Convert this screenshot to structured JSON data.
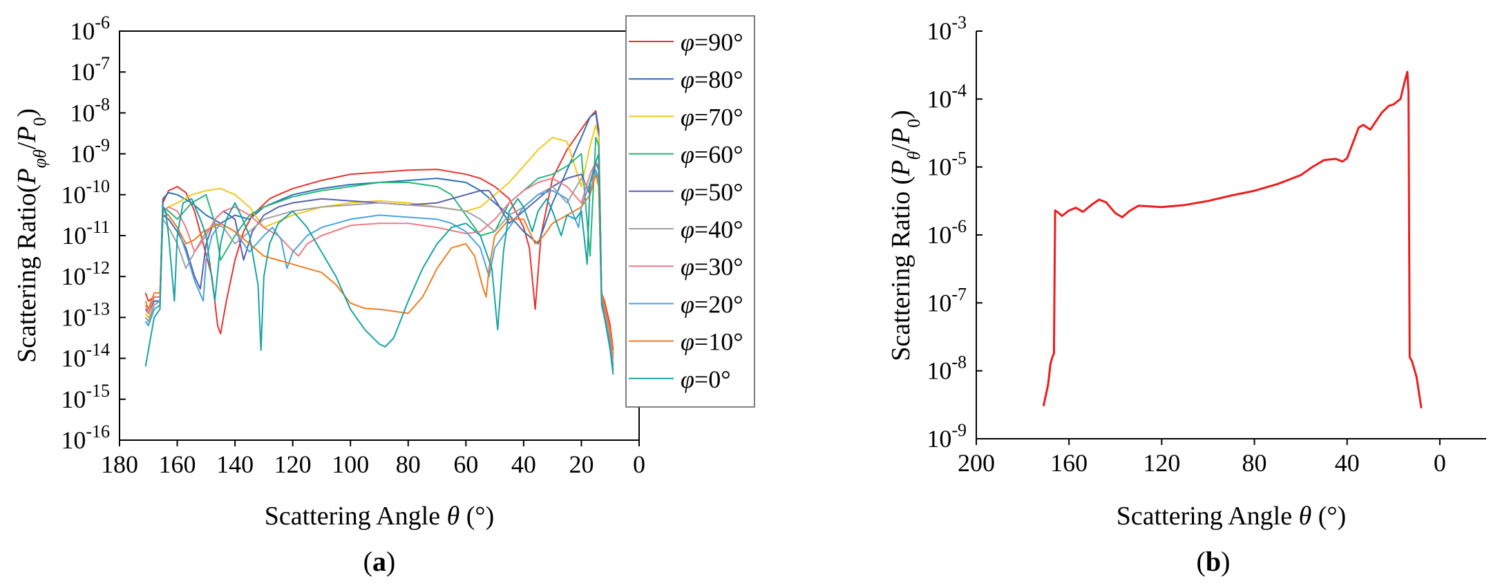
{
  "chart_data": [
    {
      "type": "line",
      "panel_label": "a",
      "xlabel": "Scattering Angle θ (°)",
      "ylabel": "Scattering Ratio(Pφθ/P0)",
      "xlim": [
        180,
        0
      ],
      "x_reversed": true,
      "xticks": [
        180,
        160,
        140,
        120,
        100,
        80,
        60,
        40,
        20,
        0
      ],
      "y_scale": "log",
      "ylim": [
        1e-16,
        1e-06
      ],
      "yticks_exp": [
        -16,
        -15,
        -14,
        -13,
        -12,
        -11,
        -10,
        -9,
        -8,
        -7,
        -6
      ],
      "legend_position": "right-inside",
      "series": [
        {
          "name": "φ=90°",
          "color": "#e8312f",
          "x": [
            171,
            170,
            168,
            166,
            165,
            163,
            160,
            157,
            154,
            151,
            148,
            146,
            145,
            143,
            140,
            137,
            134,
            131,
            128,
            125,
            120,
            110,
            100,
            90,
            80,
            70,
            60,
            55,
            50,
            45,
            40,
            38,
            36,
            34,
            30,
            25,
            20,
            17,
            15,
            14,
            13,
            12,
            10,
            9
          ],
          "y": [
            -12.4,
            -12.6,
            -12.5,
            -12.5,
            -10.2,
            -9.9,
            -9.8,
            -9.95,
            -10.4,
            -11.2,
            -12.0,
            -13.2,
            -13.4,
            -12.6,
            -11.6,
            -10.9,
            -10.5,
            -10.3,
            -10.1,
            -10.0,
            -9.85,
            -9.65,
            -9.5,
            -9.45,
            -9.4,
            -9.38,
            -9.5,
            -9.6,
            -9.8,
            -10.1,
            -10.8,
            -11.3,
            -12.8,
            -11.0,
            -9.6,
            -8.9,
            -8.4,
            -8.1,
            -7.95,
            -8.4,
            -12.4,
            -12.6,
            -13.2,
            -13.8
          ]
        },
        {
          "name": "φ=80°",
          "color": "#2e6fb7",
          "x": [
            171,
            170,
            168,
            166,
            165,
            163,
            160,
            155,
            150,
            145,
            140,
            135,
            130,
            120,
            110,
            100,
            90,
            80,
            70,
            60,
            55,
            50,
            45,
            40,
            35,
            30,
            25,
            20,
            17,
            15,
            14,
            13,
            12,
            10,
            9
          ],
          "y": [
            -12.8,
            -12.9,
            -12.6,
            -12.6,
            -10.1,
            -9.95,
            -10.0,
            -10.2,
            -10.5,
            -10.7,
            -10.5,
            -10.6,
            -10.3,
            -10.0,
            -9.85,
            -9.75,
            -9.7,
            -9.65,
            -9.6,
            -9.7,
            -9.9,
            -10.2,
            -10.5,
            -10.9,
            -11.2,
            -10.2,
            -9.4,
            -8.6,
            -8.1,
            -8.0,
            -8.5,
            -12.5,
            -12.8,
            -13.4,
            -14.0
          ]
        },
        {
          "name": "φ=70°",
          "color": "#f2c81a",
          "x": [
            171,
            170,
            168,
            166,
            165,
            163,
            160,
            155,
            150,
            145,
            140,
            135,
            130,
            120,
            110,
            100,
            90,
            80,
            70,
            60,
            55,
            50,
            45,
            40,
            35,
            30,
            25,
            20,
            17,
            15,
            14,
            13,
            12,
            10,
            9
          ],
          "y": [
            -12.9,
            -13.0,
            -12.7,
            -12.6,
            -10.4,
            -10.3,
            -10.2,
            -10.0,
            -9.9,
            -9.85,
            -10.0,
            -10.3,
            -10.8,
            -10.5,
            -10.3,
            -10.2,
            -10.15,
            -10.2,
            -10.3,
            -10.4,
            -10.3,
            -10.0,
            -9.7,
            -9.3,
            -8.9,
            -8.6,
            -8.7,
            -9.8,
            -8.8,
            -8.3,
            -8.6,
            -12.6,
            -12.8,
            -13.5,
            -14.0
          ]
        },
        {
          "name": "φ=60°",
          "color": "#27b57a",
          "x": [
            171,
            170,
            168,
            166,
            165,
            163,
            160,
            155,
            150,
            147,
            145,
            140,
            135,
            130,
            120,
            110,
            100,
            90,
            80,
            70,
            65,
            60,
            55,
            50,
            45,
            40,
            35,
            30,
            25,
            20,
            17,
            15,
            14,
            13,
            12,
            10,
            9
          ],
          "y": [
            -13.0,
            -13.1,
            -12.7,
            -12.6,
            -10.3,
            -10.4,
            -10.6,
            -10.2,
            -10.0,
            -10.7,
            -11.6,
            -11.0,
            -10.5,
            -10.3,
            -10.05,
            -9.9,
            -9.8,
            -9.7,
            -9.7,
            -9.8,
            -10.0,
            -10.5,
            -11.0,
            -10.9,
            -10.2,
            -9.9,
            -9.6,
            -9.5,
            -9.3,
            -9.0,
            -11.5,
            -8.6,
            -8.8,
            -12.6,
            -12.9,
            -13.6,
            -14.2
          ]
        },
        {
          "name": "φ=50°",
          "color": "#5a5fad",
          "x": [
            171,
            170,
            168,
            166,
            165,
            163,
            160,
            157,
            154,
            152,
            150,
            147,
            144,
            140,
            137,
            134,
            130,
            125,
            120,
            110,
            100,
            90,
            80,
            70,
            60,
            55,
            52,
            50,
            45,
            40,
            35,
            30,
            25,
            20,
            17,
            15,
            14,
            13,
            12,
            10,
            9
          ],
          "y": [
            -13.1,
            -13.2,
            -12.8,
            -12.7,
            -10.5,
            -10.6,
            -10.9,
            -11.3,
            -12.0,
            -12.3,
            -11.2,
            -10.6,
            -10.4,
            -10.6,
            -11.6,
            -10.9,
            -10.5,
            -10.3,
            -10.2,
            -10.1,
            -10.15,
            -10.2,
            -10.25,
            -10.2,
            -10.0,
            -9.9,
            -9.9,
            -10.1,
            -10.7,
            -10.4,
            -10.1,
            -9.8,
            -9.6,
            -9.5,
            -10.0,
            -9.2,
            -9.4,
            -12.7,
            -13.0,
            -13.7,
            -14.3
          ]
        },
        {
          "name": "φ=40°",
          "color": "#a0a0a0",
          "x": [
            171,
            170,
            168,
            166,
            165,
            163,
            160,
            157,
            154,
            150,
            147,
            144,
            140,
            135,
            130,
            125,
            120,
            110,
            100,
            90,
            80,
            70,
            60,
            55,
            50,
            45,
            40,
            35,
            30,
            25,
            20,
            17,
            15,
            14,
            13,
            12,
            10,
            9
          ],
          "y": [
            -13.0,
            -13.1,
            -12.7,
            -12.6,
            -10.6,
            -10.8,
            -11.2,
            -11.8,
            -11.4,
            -10.9,
            -10.7,
            -10.8,
            -11.2,
            -10.9,
            -10.6,
            -10.5,
            -10.4,
            -10.3,
            -10.25,
            -10.2,
            -10.25,
            -10.3,
            -10.4,
            -10.6,
            -10.9,
            -10.5,
            -10.3,
            -10.0,
            -9.8,
            -10.2,
            -9.6,
            -9.9,
            -9.4,
            -9.7,
            -12.6,
            -12.9,
            -13.5,
            -14.1
          ]
        },
        {
          "name": "φ=30°",
          "color": "#f07a85",
          "x": [
            171,
            170,
            168,
            166,
            165,
            163,
            160,
            157,
            154,
            150,
            147,
            144,
            140,
            135,
            130,
            125,
            121,
            118,
            115,
            110,
            100,
            90,
            80,
            70,
            60,
            55,
            50,
            45,
            40,
            35,
            30,
            25,
            20,
            17,
            15,
            14,
            13,
            12,
            10,
            9
          ],
          "y": [
            -12.7,
            -12.9,
            -12.5,
            -12.5,
            -10.4,
            -10.3,
            -10.4,
            -10.8,
            -11.4,
            -11.0,
            -10.6,
            -10.4,
            -10.3,
            -10.5,
            -10.8,
            -11.0,
            -11.3,
            -11.5,
            -11.2,
            -11.0,
            -10.75,
            -10.7,
            -10.7,
            -10.8,
            -10.95,
            -10.9,
            -10.6,
            -10.2,
            -9.9,
            -9.7,
            -9.6,
            -9.8,
            -10.2,
            -9.5,
            -9.2,
            -9.3,
            -12.5,
            -12.8,
            -13.4,
            -14.0
          ]
        },
        {
          "name": "φ=20°",
          "color": "#4aa3df",
          "x": [
            171,
            170,
            168,
            166,
            165,
            163,
            160,
            157,
            154,
            151,
            150,
            148,
            145,
            140,
            135,
            130,
            127,
            124,
            122,
            120,
            115,
            110,
            100,
            90,
            80,
            70,
            65,
            60,
            55,
            52,
            50,
            45,
            40,
            35,
            30,
            25,
            21,
            20,
            17,
            15,
            14,
            13,
            12,
            10,
            9
          ],
          "y": [
            -13.1,
            -13.2,
            -12.8,
            -12.7,
            -10.4,
            -10.5,
            -10.8,
            -11.4,
            -12.1,
            -12.6,
            -11.6,
            -11.0,
            -10.7,
            -10.9,
            -11.4,
            -11.0,
            -10.8,
            -11.1,
            -11.8,
            -11.4,
            -11.0,
            -10.8,
            -10.6,
            -10.5,
            -10.55,
            -10.6,
            -10.7,
            -10.9,
            -11.3,
            -12.0,
            -11.3,
            -10.8,
            -10.3,
            -10.0,
            -9.9,
            -10.1,
            -10.8,
            -10.3,
            -9.7,
            -9.4,
            -9.6,
            -12.7,
            -13.0,
            -13.7,
            -14.3
          ]
        },
        {
          "name": "φ=10°",
          "color": "#ef7d22",
          "x": [
            171,
            170,
            168,
            166,
            165,
            163,
            160,
            157,
            154,
            151,
            148,
            145,
            140,
            135,
            130,
            125,
            120,
            115,
            110,
            105,
            100,
            95,
            90,
            85,
            80,
            75,
            70,
            65,
            60,
            57,
            54,
            53,
            52,
            50,
            45,
            40,
            36,
            33,
            30,
            25,
            20,
            17,
            15,
            14,
            13,
            12,
            10,
            9
          ],
          "y": [
            -12.6,
            -12.8,
            -12.4,
            -12.4,
            -10.5,
            -10.5,
            -10.8,
            -11.2,
            -11.1,
            -10.9,
            -10.8,
            -10.7,
            -10.9,
            -11.2,
            -11.5,
            -11.6,
            -11.7,
            -11.8,
            -11.9,
            -12.2,
            -12.65,
            -12.78,
            -12.8,
            -12.85,
            -12.9,
            -12.5,
            -11.8,
            -11.3,
            -11.2,
            -11.5,
            -12.3,
            -12.5,
            -11.8,
            -11.0,
            -10.6,
            -10.6,
            -11.2,
            -11.0,
            -10.7,
            -10.5,
            -10.3,
            -10.0,
            -9.5,
            -9.8,
            -12.4,
            -12.7,
            -13.3,
            -13.9
          ]
        },
        {
          "name": "φ=0°",
          "color": "#17a2a2",
          "x": [
            171,
            170,
            168,
            166,
            165,
            164,
            163,
            161,
            160,
            158,
            155,
            152,
            150,
            147,
            145,
            143,
            140,
            138,
            135,
            132,
            131,
            130,
            128,
            125,
            120,
            115,
            110,
            105,
            100,
            95,
            90,
            88,
            85,
            80,
            75,
            70,
            65,
            60,
            55,
            51,
            49,
            47,
            45,
            42,
            40,
            37,
            35,
            32,
            30,
            27,
            25,
            22,
            20,
            18,
            17,
            15,
            14,
            13,
            12,
            10,
            9
          ],
          "y": [
            -14.2,
            -13.8,
            -13.0,
            -12.8,
            -10.3,
            -10.4,
            -11.0,
            -12.6,
            -11.0,
            -10.2,
            -10.1,
            -10.6,
            -11.0,
            -12.6,
            -11.2,
            -10.6,
            -10.2,
            -10.5,
            -11.0,
            -12.2,
            -13.8,
            -12.0,
            -11.2,
            -10.7,
            -10.4,
            -10.8,
            -11.4,
            -12.0,
            -12.8,
            -13.3,
            -13.65,
            -13.72,
            -13.5,
            -12.6,
            -11.8,
            -11.2,
            -10.8,
            -10.7,
            -11.0,
            -11.8,
            -13.3,
            -11.4,
            -10.4,
            -10.1,
            -10.3,
            -10.9,
            -10.4,
            -10.1,
            -10.4,
            -11.0,
            -10.5,
            -10.6,
            -10.4,
            -11.7,
            -9.7,
            -9.2,
            -9.0,
            -12.6,
            -13.0,
            -13.8,
            -14.4
          ]
        }
      ]
    },
    {
      "type": "line",
      "panel_label": "b",
      "xlabel": "Scattering Angle θ (°)",
      "ylabel": "Scattering Ratio (Pθ/P0)",
      "xlim": [
        200,
        -20
      ],
      "x_reversed": true,
      "xticks": [
        200,
        160,
        120,
        80,
        40,
        0
      ],
      "y_scale": "log",
      "ylim": [
        1e-09,
        0.001
      ],
      "yticks_exp": [
        -9,
        -8,
        -7,
        -6,
        -5,
        -4,
        -3
      ],
      "series": [
        {
          "name": "",
          "color": "#ee1c1c",
          "x": [
            171,
            169,
            168,
            167,
            166.5,
            166,
            165,
            163,
            160,
            157,
            154,
            150,
            147,
            144,
            140,
            137,
            134,
            130,
            125,
            120,
            110,
            100,
            90,
            80,
            70,
            60,
            55,
            50,
            45,
            42,
            40,
            37,
            35,
            33,
            30,
            28,
            25,
            22,
            20,
            17,
            15,
            14,
            13.5,
            13,
            12,
            10,
            8
          ],
          "y": [
            -8.52,
            -8.2,
            -7.9,
            -7.78,
            -7.75,
            -5.64,
            -5.66,
            -5.72,
            -5.64,
            -5.6,
            -5.66,
            -5.55,
            -5.48,
            -5.52,
            -5.68,
            -5.74,
            -5.65,
            -5.57,
            -5.58,
            -5.59,
            -5.56,
            -5.5,
            -5.42,
            -5.35,
            -5.25,
            -5.12,
            -5.0,
            -4.9,
            -4.88,
            -4.92,
            -4.87,
            -4.6,
            -4.42,
            -4.38,
            -4.45,
            -4.35,
            -4.2,
            -4.1,
            -4.08,
            -4.0,
            -3.72,
            -3.6,
            -3.9,
            -7.8,
            -7.86,
            -8.1,
            -8.55
          ]
        }
      ]
    }
  ]
}
